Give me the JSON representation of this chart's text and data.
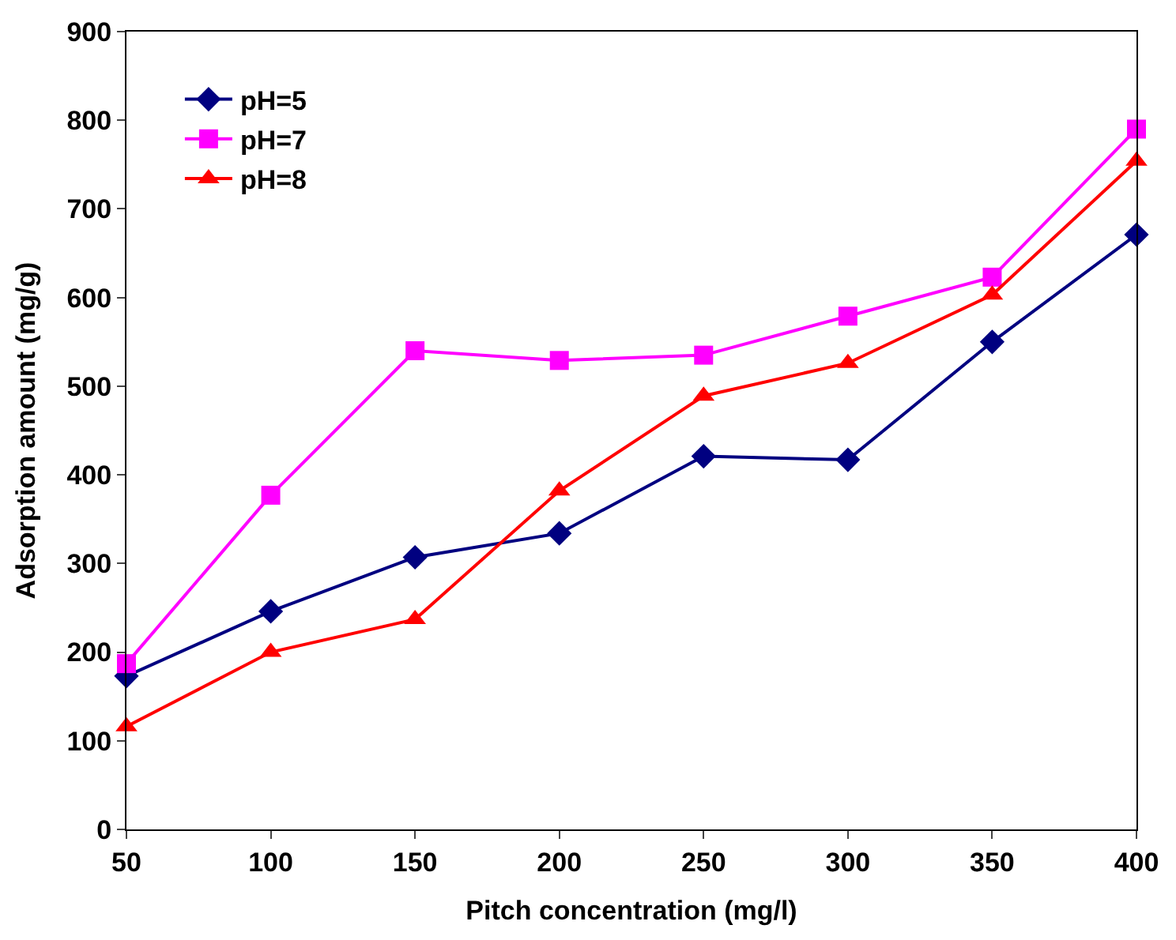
{
  "chart_data": {
    "type": "line",
    "xlabel": "Pitch concentration (mg/l)",
    "ylabel": "Adsorption amount (mg/g)",
    "x": [
      50,
      100,
      150,
      200,
      250,
      300,
      350,
      400
    ],
    "series": [
      {
        "name": "pH=5",
        "color": "#000080",
        "marker": "diamond",
        "values": [
          173,
          246,
          307,
          334,
          421,
          417,
          550,
          671
        ]
      },
      {
        "name": "pH=7",
        "color": "#ff00ff",
        "marker": "square",
        "values": [
          187,
          377,
          540,
          529,
          535,
          579,
          623,
          790
        ]
      },
      {
        "name": "pH=8",
        "color": "#ff0000",
        "marker": "triangle",
        "values": [
          116,
          200,
          237,
          382,
          489,
          526,
          603,
          754
        ]
      }
    ],
    "xlim": [
      50,
      400
    ],
    "xticks": [
      50,
      100,
      150,
      200,
      250,
      300,
      350,
      400
    ],
    "ylim": [
      0,
      900
    ],
    "yticks": [
      0,
      100,
      200,
      300,
      400,
      500,
      600,
      700,
      800,
      900
    ],
    "legend": "top left",
    "line_style": "solid"
  }
}
